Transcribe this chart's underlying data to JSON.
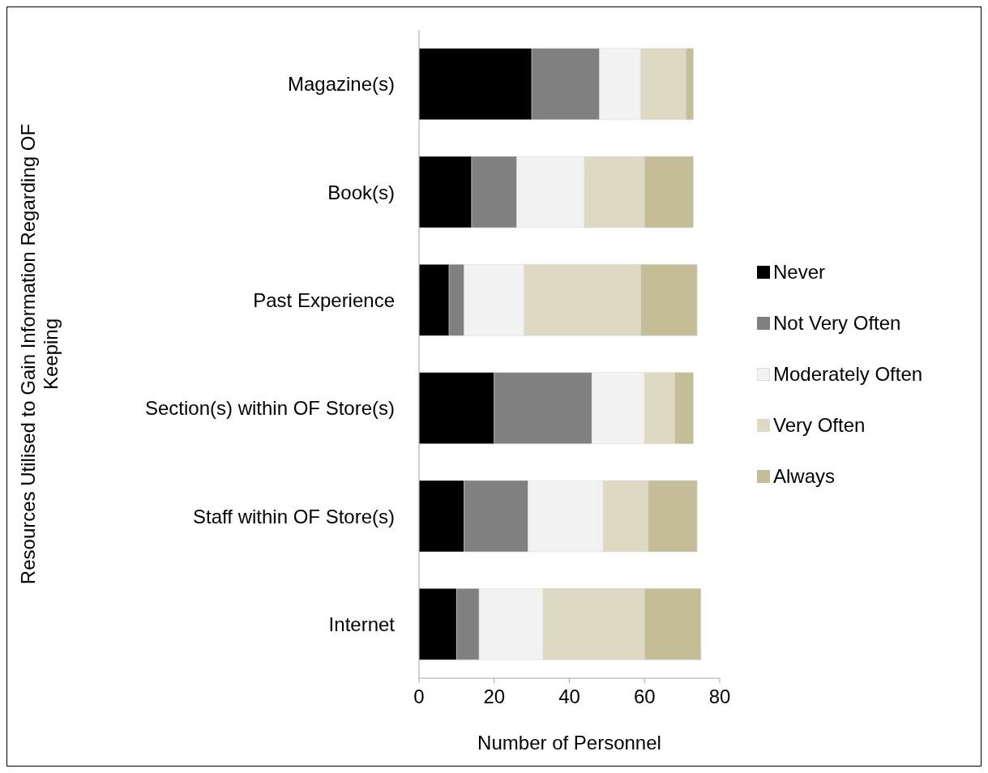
{
  "chart_data": {
    "type": "bar",
    "orientation": "horizontal",
    "stacked": true,
    "ylabel": "Resources Utilised to Gain Information Regarding OF Keeping",
    "xlabel": "Number of Personnel",
    "categories": [
      "Magazine(s)",
      "Book(s)",
      "Past Experience",
      "Section(s) within OF Store(s)",
      "Staff within OF Store(s)",
      "Internet"
    ],
    "series": [
      {
        "name": "Never",
        "color": "#000000",
        "values": [
          30,
          14,
          8,
          20,
          12,
          10
        ]
      },
      {
        "name": "Not Very Often",
        "color": "#808080",
        "values": [
          18,
          12,
          4,
          26,
          17,
          6
        ]
      },
      {
        "name": "Moderately Often",
        "color": "#f2f2f2",
        "values": [
          11,
          18,
          16,
          14,
          20,
          17
        ]
      },
      {
        "name": "Very Often",
        "color": "#ddd9c3",
        "values": [
          12,
          16,
          31,
          8,
          12,
          27
        ]
      },
      {
        "name": "Always",
        "color": "#c4bd97",
        "values": [
          2,
          13,
          15,
          5,
          13,
          15
        ]
      }
    ],
    "xlim": [
      0,
      80
    ],
    "xticks": [
      0,
      20,
      40,
      60,
      80
    ],
    "grid": false,
    "legend": "right"
  }
}
